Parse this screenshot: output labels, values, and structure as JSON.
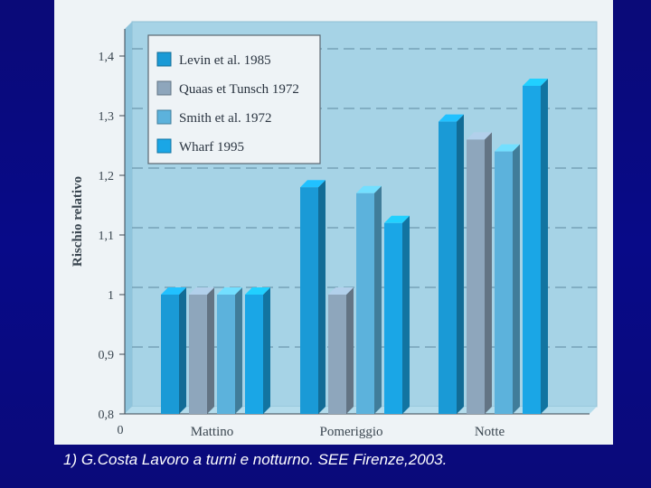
{
  "caption": "1) G.Costa Lavoro a turni e notturno. SEE Firenze,2003.",
  "chart_data": {
    "type": "bar",
    "title": "",
    "xlabel": "",
    "ylabel": "Rischio relativo",
    "x_origin_label": "0",
    "categories": [
      "Mattino",
      "Pomeriggio",
      "Notte"
    ],
    "y_tick_labels": [
      "0,8",
      "0,9",
      "1",
      "1,1",
      "1,2",
      "1,3",
      "1,4"
    ],
    "y_ticks": [
      0.8,
      0.9,
      1.0,
      1.1,
      1.2,
      1.3,
      1.4
    ],
    "ylim": [
      0.8,
      1.45
    ],
    "grid": true,
    "legend_position": "top-left",
    "series": [
      {
        "name": "Levin et al. 1985",
        "color": "#1a9ad6",
        "values": [
          1.0,
          1.18,
          1.29
        ]
      },
      {
        "name": "Quaas et Tunsch 1972",
        "color": "#8ea6bc",
        "values": [
          1.0,
          1.0,
          1.26
        ]
      },
      {
        "name": "Smith et al. 1972",
        "color": "#5cb2dc",
        "values": [
          1.0,
          1.17,
          1.24
        ]
      },
      {
        "name": "Wharf 1995",
        "color": "#1aa6e6",
        "values": [
          1.0,
          1.12,
          1.35
        ]
      }
    ]
  }
}
